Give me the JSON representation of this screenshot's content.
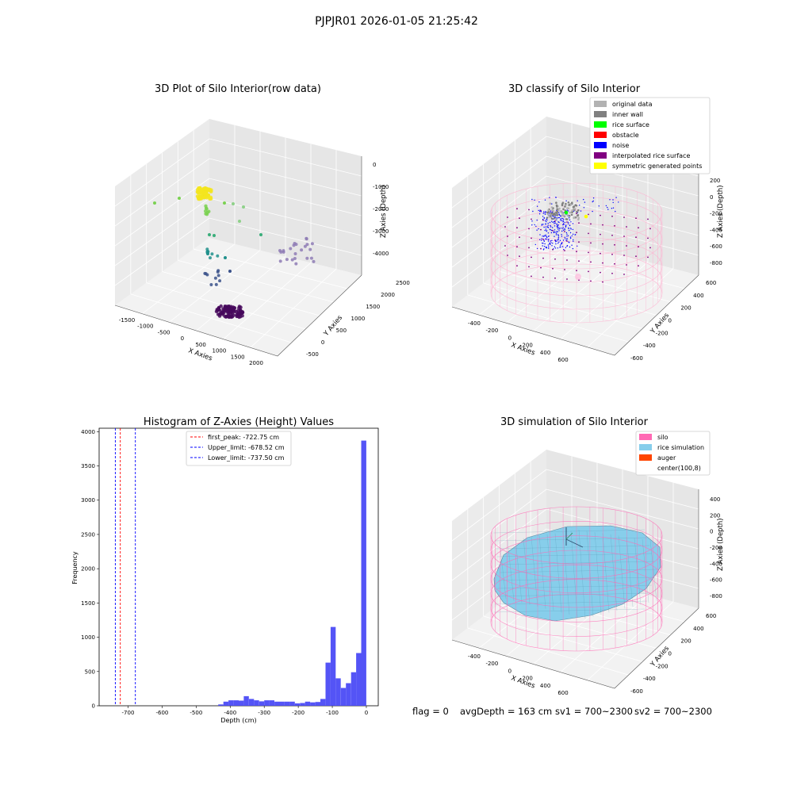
{
  "suptitle": "PJPJR01 2026-01-05 21:25:42",
  "footer": {
    "flag": "flag = 0",
    "avg": "avgDepth = 163 cm",
    "sv1": "sv1 = 700~2300",
    "sv2": "sv2 = 700~2300"
  },
  "colors": {
    "hist_bar": "#4b4bf5",
    "silo": "#ff69b4",
    "rice_sim": "#87ceeb",
    "auger": "#ff4500",
    "noise": "#0000ff",
    "inner_wall": "#808080",
    "original": "#b2b2b2",
    "rice_surface": "#00ff00",
    "obstacle": "#ff0000",
    "interp": "#800080",
    "symmetric": "#ffff00"
  },
  "chart_data": [
    {
      "type": "scatter",
      "panel": "3d-raw",
      "title": "3D Plot of Silo Interior(row data)",
      "xlabel": "X Axies",
      "ylabel": "Y Axies",
      "zlabel": "Z Axies (Depth)",
      "x_ticks": [
        "-1500",
        "-1000",
        "-500",
        "0",
        "500",
        "1000",
        "1500",
        "2000"
      ],
      "y_ticks": [
        "-500",
        "0",
        "500",
        "1000",
        "1500",
        "2000",
        "2500"
      ],
      "z_ticks": [
        "0",
        "-1000",
        "-2000",
        "-3000",
        "-4000"
      ],
      "xlim": [
        -1500,
        2000
      ],
      "ylim": [
        -500,
        2500
      ],
      "zlim": [
        -4500,
        0
      ]
    },
    {
      "type": "scatter",
      "panel": "3d-classify",
      "title": "3D classify of Silo Interior",
      "xlabel": "X Axies",
      "ylabel": "Y Axies",
      "zlabel": "Z Axies (Depth)",
      "x_ticks": [
        "-400",
        "-200",
        "0",
        "200",
        "400",
        "600"
      ],
      "y_ticks": [
        "-600",
        "-400",
        "-200",
        "0",
        "200",
        "400",
        "600"
      ],
      "z_ticks": [
        "200",
        "0",
        "-200",
        "-400",
        "-600",
        "-800"
      ],
      "legend_position": "top-right",
      "legend": [
        {
          "label": "original data",
          "color": "#b2b2b2"
        },
        {
          "label": "inner wall",
          "color": "#808080"
        },
        {
          "label": "rice surface",
          "color": "#00ff00"
        },
        {
          "label": "obstacle",
          "color": "#ff0000"
        },
        {
          "label": "noise",
          "color": "#0000ff"
        },
        {
          "label": "interpolated rice surface",
          "color": "#800080"
        },
        {
          "label": "symmetric generated points",
          "color": "#ffff00"
        }
      ]
    },
    {
      "type": "bar",
      "panel": "histogram",
      "title": "Histogram of Z-Axies (Height) Values",
      "xlabel": "Depth (cm)",
      "ylabel": "Frequency",
      "x_ticks": [
        -700,
        -600,
        -500,
        -400,
        -300,
        -200,
        -100,
        0
      ],
      "y_ticks": [
        0,
        500,
        1000,
        1500,
        2000,
        2500,
        3000,
        3500,
        4000
      ],
      "xlim": [
        -785,
        35
      ],
      "ylim": [
        0,
        4050
      ],
      "bin_width": 15,
      "bins": [
        {
          "left": -435,
          "value": 20
        },
        {
          "left": -420,
          "value": 60
        },
        {
          "left": -405,
          "value": 80
        },
        {
          "left": -390,
          "value": 80
        },
        {
          "left": -375,
          "value": 75
        },
        {
          "left": -360,
          "value": 140
        },
        {
          "left": -345,
          "value": 100
        },
        {
          "left": -330,
          "value": 80
        },
        {
          "left": -315,
          "value": 65
        },
        {
          "left": -300,
          "value": 80
        },
        {
          "left": -285,
          "value": 80
        },
        {
          "left": -270,
          "value": 60
        },
        {
          "left": -255,
          "value": 60
        },
        {
          "left": -240,
          "value": 60
        },
        {
          "left": -225,
          "value": 60
        },
        {
          "left": -210,
          "value": 35
        },
        {
          "left": -195,
          "value": 40
        },
        {
          "left": -180,
          "value": 60
        },
        {
          "left": -165,
          "value": 50
        },
        {
          "left": -150,
          "value": 55
        },
        {
          "left": -135,
          "value": 100
        },
        {
          "left": -120,
          "value": 630
        },
        {
          "left": -105,
          "value": 1150
        },
        {
          "left": -90,
          "value": 400
        },
        {
          "left": -75,
          "value": 260
        },
        {
          "left": -60,
          "value": 330
        },
        {
          "left": -45,
          "value": 490
        },
        {
          "left": -30,
          "value": 770
        },
        {
          "left": -15,
          "value": 3870
        }
      ],
      "lines": [
        {
          "label": "first_peak: -722.75 cm",
          "x": -722.75,
          "color": "#ff0000"
        },
        {
          "label": "Upper_limit: -678.52 cm",
          "x": -678.52,
          "color": "#0000ff"
        },
        {
          "label": "Lower_limit: -737.50 cm",
          "x": -737.5,
          "color": "#0000ff"
        }
      ],
      "legend_position": "top-center"
    },
    {
      "type": "scatter",
      "panel": "3d-simulation",
      "title": "3D simulation of Silo Interior",
      "xlabel": "X Axies",
      "ylabel": "Y Axies",
      "zlabel": "Z Axies (Depth)",
      "x_ticks": [
        "-400",
        "-200",
        "0",
        "200",
        "400",
        "600"
      ],
      "y_ticks": [
        "-600",
        "-400",
        "-200",
        "0",
        "200",
        "400",
        "600"
      ],
      "z_ticks": [
        "400",
        "200",
        "0",
        "-200",
        "-400",
        "-600",
        "-800"
      ],
      "legend_position": "top-right",
      "legend": [
        {
          "label": "silo",
          "color": "#ff69b4"
        },
        {
          "label": "rice simulation",
          "color": "#87ceeb"
        },
        {
          "label": "auger",
          "color": "#ff4500"
        },
        {
          "label": "center(100,8)",
          "color": "none"
        }
      ]
    }
  ]
}
